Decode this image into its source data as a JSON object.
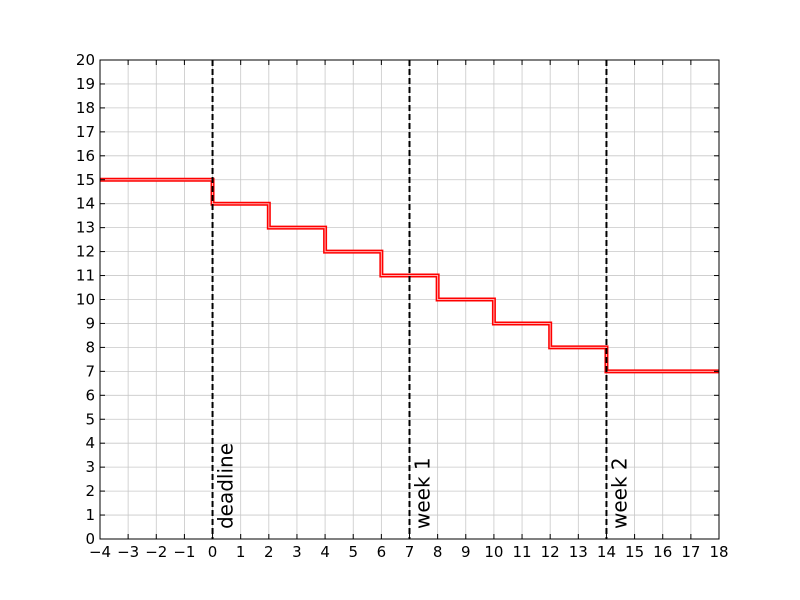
{
  "chart_data": {
    "type": "line",
    "title": "",
    "xlabel": "",
    "ylabel": "",
    "xlim": [
      -4,
      18
    ],
    "ylim": [
      0,
      20
    ],
    "xticks": [
      -4,
      -3,
      -2,
      -1,
      0,
      1,
      2,
      3,
      4,
      5,
      6,
      7,
      8,
      9,
      10,
      11,
      12,
      13,
      14,
      15,
      16,
      17,
      18
    ],
    "yticks": [
      0,
      1,
      2,
      3,
      4,
      5,
      6,
      7,
      8,
      9,
      10,
      11,
      12,
      13,
      14,
      15,
      16,
      17,
      18,
      19,
      20
    ],
    "grid": true,
    "step": "post",
    "series_color": "#ff0000",
    "series": [
      {
        "name": "",
        "x": [
          -4,
          0,
          2,
          4,
          6,
          8,
          10,
          12,
          14,
          18
        ],
        "y": [
          15,
          14,
          13,
          12,
          11,
          10,
          9,
          8,
          7,
          7
        ]
      }
    ],
    "vlines": [
      {
        "x": 0,
        "label": "deadline"
      },
      {
        "x": 7,
        "label": "week 1"
      },
      {
        "x": 14,
        "label": "week 2"
      }
    ]
  }
}
